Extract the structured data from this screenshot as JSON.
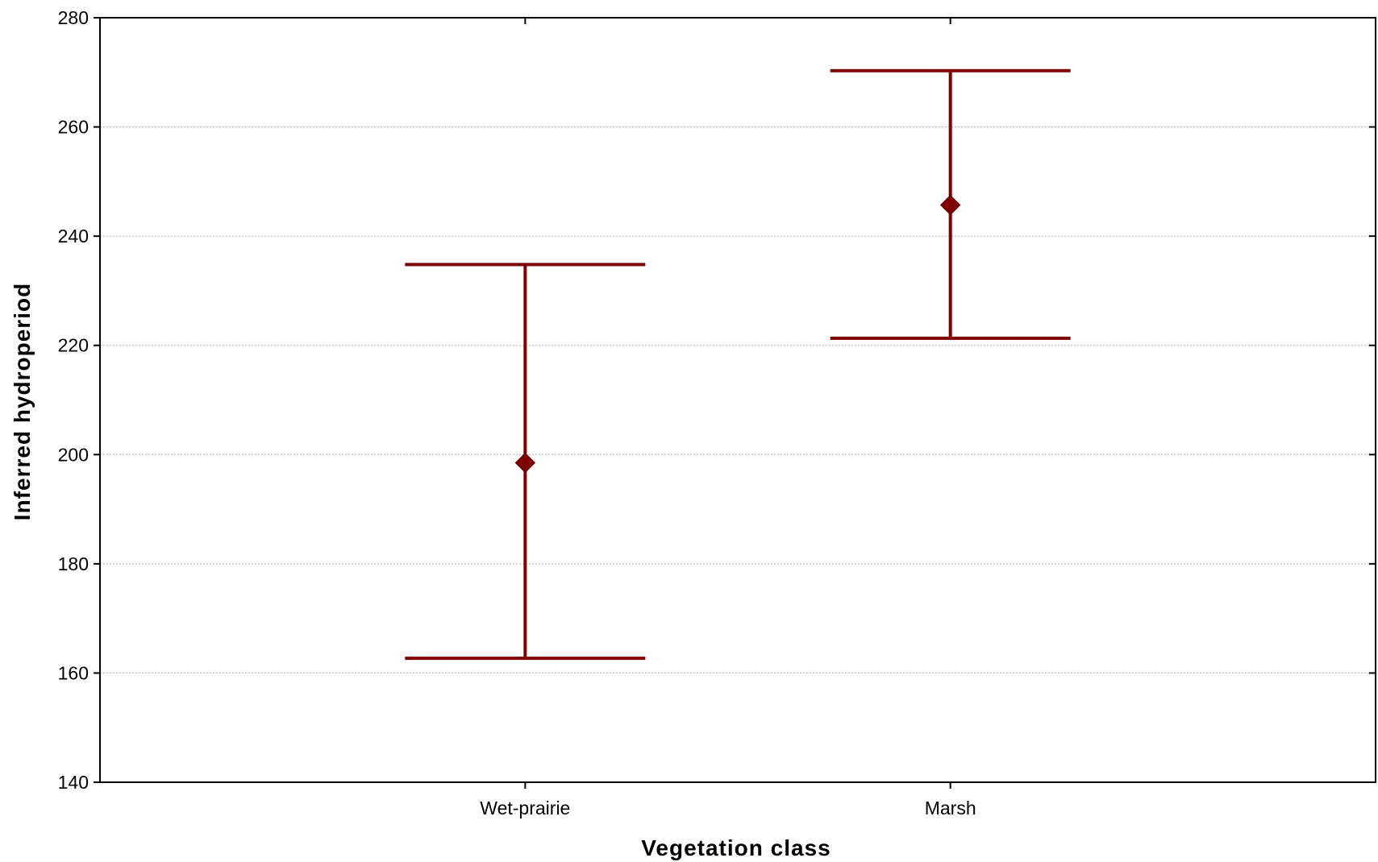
{
  "chart_data": {
    "type": "errorbar",
    "title": "",
    "xlabel": "Vegetation class",
    "ylabel": "Inferred hydroperiod",
    "categories": [
      "Wet-prairie",
      "Marsh"
    ],
    "means": [
      198.5,
      245.7
    ],
    "lower": [
      162.7,
      221.3
    ],
    "upper": [
      234.8,
      270.3
    ],
    "ylim": [
      140,
      280
    ],
    "yticks": [
      140,
      160,
      180,
      200,
      220,
      240,
      260,
      280
    ],
    "grid": true,
    "legend": "none",
    "colors": {
      "series": "#7f0000",
      "axis": "#000000",
      "grid": "#b0b0b0"
    }
  }
}
